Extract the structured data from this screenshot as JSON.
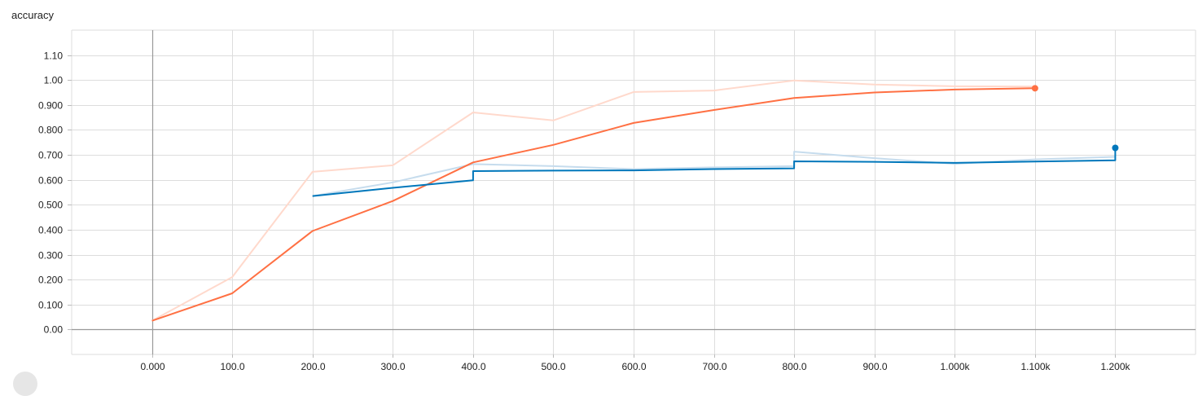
{
  "chart_data": {
    "type": "line",
    "title": "accuracy",
    "xlabel": "",
    "ylabel": "",
    "xlim": [
      -100,
      1300
    ],
    "ylim": [
      -0.1,
      1.2
    ],
    "grid": true,
    "x_ticks": [
      0,
      100,
      200,
      300,
      400,
      500,
      600,
      700,
      800,
      900,
      1000,
      1100,
      1200
    ],
    "x_tick_labels": [
      "0.000",
      "100.0",
      "200.0",
      "300.0",
      "400.0",
      "500.0",
      "600.0",
      "700.0",
      "800.0",
      "900.0",
      "1.000k",
      "1.100k",
      "1.200k"
    ],
    "y_ticks": [
      0,
      0.1,
      0.2,
      0.3,
      0.4,
      0.5,
      0.6,
      0.7,
      0.8,
      0.9,
      1.0,
      1.1
    ],
    "y_tick_labels": [
      "0.00",
      "0.100",
      "0.200",
      "0.300",
      "0.400",
      "0.500",
      "0.600",
      "0.700",
      "0.800",
      "0.900",
      "1.00",
      "1.10"
    ],
    "series": [
      {
        "color": "#ff7043",
        "raw_color": "#ffd9cc",
        "smoothed": {
          "x": [
            0,
            100,
            200,
            300,
            400,
            500,
            600,
            700,
            800,
            900,
            1000,
            1100
          ],
          "y": [
            0.035,
            0.145,
            0.395,
            0.515,
            0.67,
            0.74,
            0.828,
            0.88,
            0.928,
            0.95,
            0.962,
            0.967
          ]
        },
        "raw": {
          "x": [
            0,
            100,
            200,
            300,
            400,
            500,
            600,
            700,
            800,
            900,
            1000,
            1100
          ],
          "y": [
            0.035,
            0.21,
            0.632,
            0.658,
            0.87,
            0.838,
            0.952,
            0.958,
            0.998,
            0.982,
            0.975,
            0.974
          ]
        },
        "end_marker": {
          "x": 1100,
          "y": 0.967
        }
      },
      {
        "color": "#0077bb",
        "raw_color": "#c6dced",
        "smoothed": {
          "x": [
            200,
            300,
            400,
            400,
            500,
            600,
            700,
            800,
            800,
            900,
            1000,
            1100,
            1200,
            1200
          ],
          "y": [
            0.535,
            0.568,
            0.598,
            0.635,
            0.637,
            0.638,
            0.643,
            0.646,
            0.674,
            0.672,
            0.668,
            0.673,
            0.678,
            0.728
          ]
        },
        "raw": {
          "x": [
            200,
            300,
            400,
            500,
            600,
            700,
            800,
            800,
            900,
            1000,
            1100,
            1200
          ],
          "y": [
            0.535,
            0.59,
            0.663,
            0.655,
            0.643,
            0.65,
            0.655,
            0.713,
            0.687,
            0.664,
            0.682,
            0.692
          ]
        },
        "end_marker": {
          "x": 1200,
          "y": 0.728
        }
      }
    ]
  }
}
